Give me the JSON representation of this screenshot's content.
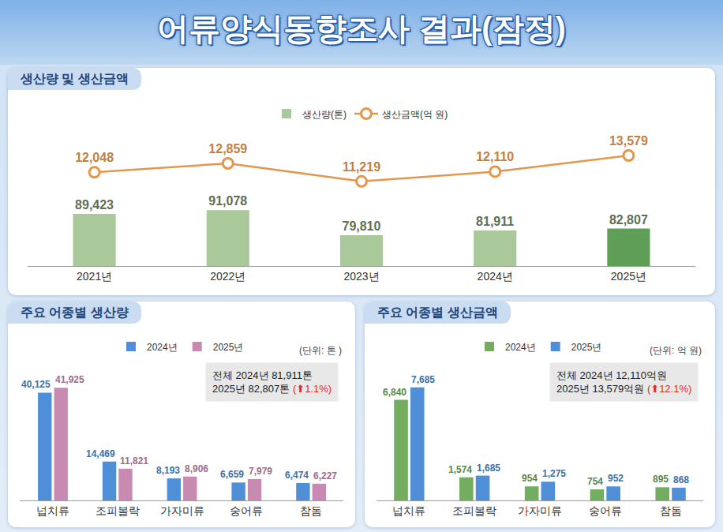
{
  "header": {
    "title": "어류양식동향조사 결과(잠정)"
  },
  "chart_data": [
    {
      "type": "bar",
      "title": "생산량 및 생산금액",
      "categories": [
        "2021년",
        "2022년",
        "2023년",
        "2024년",
        "2025년"
      ],
      "series": [
        {
          "name": "생산량(톤)",
          "type": "bar",
          "color": "#a9c99b",
          "colors": [
            "#a9c99b",
            "#a9c99b",
            "#a9c99b",
            "#a9c99b",
            "#5f9e57"
          ],
          "values": [
            89423,
            91078,
            79810,
            81911,
            82807
          ],
          "value_labels": [
            "89,423",
            "91,078",
            "79,810",
            "81,911",
            "82,807"
          ]
        },
        {
          "name": "생산금액(억 원)",
          "type": "line",
          "axis": "y2",
          "color": "#e3964c",
          "marker": "circle",
          "line_style": "solid",
          "values": [
            12048,
            12859,
            11219,
            12110,
            13579
          ],
          "value_labels": [
            "12,048",
            "12,859",
            "11,219",
            "12,110",
            "13,579"
          ]
        }
      ],
      "ylim": [
        66000,
        128000
      ],
      "y2lim": [
        3500,
        16100
      ],
      "grid": false,
      "legend": "top",
      "data_labels": true,
      "tick_labels": "x"
    },
    {
      "type": "bar",
      "title": "주요 어종별 생산량",
      "categories": [
        "넙치류",
        "조피볼락",
        "가자미류",
        "숭어류",
        "참돔"
      ],
      "series": [
        {
          "name": "2024년",
          "color": "#4f8fd8",
          "values": [
            40125,
            14469,
            8193,
            6659,
            6474
          ],
          "value_labels": [
            "40,125",
            "14,469",
            "8,193",
            "6,659",
            "6,474"
          ]
        },
        {
          "name": "2025년",
          "color": "#c98ab2",
          "values": [
            41925,
            11821,
            8906,
            7979,
            6227
          ],
          "value_labels": [
            "41,925",
            "11,821",
            "8,906",
            "7,979",
            "6,227"
          ]
        }
      ],
      "ylim": [
        0,
        52000
      ],
      "grid": false,
      "legend": "top",
      "data_labels": true,
      "tick_labels": "x",
      "annotations": {
        "unit": "(단위: 톤 )",
        "total": {
          "label": "전체",
          "lines": [
            "2024년 81,911톤",
            "2025년 82,807톤"
          ],
          "change": "(⬆1.1%)"
        }
      }
    },
    {
      "type": "bar",
      "title": "주요 어종별 생산금액",
      "categories": [
        "넙치류",
        "조피볼락",
        "가자미류",
        "숭어류",
        "참돔"
      ],
      "series": [
        {
          "name": "2024년",
          "color": "#72ad60",
          "values": [
            6840,
            1574,
            954,
            754,
            895
          ],
          "value_labels": [
            "6,840",
            "1,574",
            "954",
            "754",
            "895"
          ]
        },
        {
          "name": "2025년",
          "color": "#4f8fd8",
          "values": [
            7685,
            1685,
            1275,
            952,
            868
          ],
          "value_labels": [
            "7,685",
            "1,685",
            "1,275",
            "952",
            "868"
          ]
        }
      ],
      "ylim": [
        0,
        9500
      ],
      "grid": false,
      "legend": "top",
      "data_labels": true,
      "tick_labels": "x",
      "annotations": {
        "unit": "(단위: 억 원)",
        "total": {
          "label": "전체",
          "lines": [
            "2024년 12,110억원",
            "2025년 13,579억원"
          ],
          "change": "(⬆12.1%)"
        }
      }
    }
  ]
}
